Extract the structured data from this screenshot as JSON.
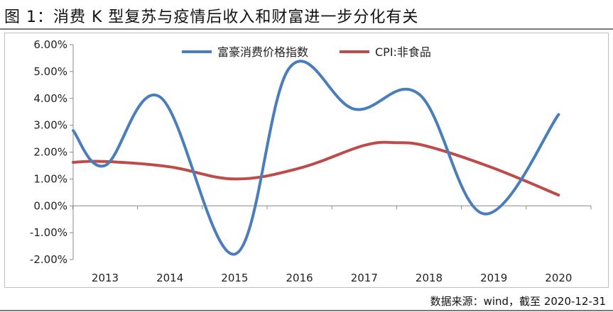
{
  "header": {
    "title": "图 1：消费 K 型复苏与疫情后收入和财富进一步分化有关"
  },
  "footer": {
    "source": "数据来源：wind，截至 2020-12-31"
  },
  "chart_data": {
    "type": "line",
    "categories": [
      "2013",
      "2014",
      "2015",
      "2016",
      "2017",
      "2018",
      "2019",
      "2020"
    ],
    "ylim": [
      -2.0,
      6.0
    ],
    "ytick_step": 1.0,
    "ytick_format": "percent_2dp",
    "grid": false,
    "legend_position": "top-center",
    "series": [
      {
        "name": "富豪消费价格指数",
        "color": "#4a7ebb",
        "x": [
          2012.5,
          2013.0,
          2013.85,
          2015.0,
          2015.85,
          2016.85,
          2017.85,
          2018.85,
          2020.0
        ],
        "values": [
          2.8,
          1.5,
          4.05,
          -1.8,
          5.15,
          3.6,
          4.15,
          -0.3,
          3.4
        ]
      },
      {
        "name": "CPI:非食品",
        "color": "#be4b48",
        "x": [
          2012.5,
          2013.0,
          2014.0,
          2015.0,
          2016.0,
          2017.0,
          2017.5,
          2018.0,
          2019.0,
          2020.0
        ],
        "values": [
          1.62,
          1.65,
          1.45,
          1.0,
          1.4,
          2.25,
          2.35,
          2.2,
          1.4,
          0.4
        ]
      }
    ]
  }
}
